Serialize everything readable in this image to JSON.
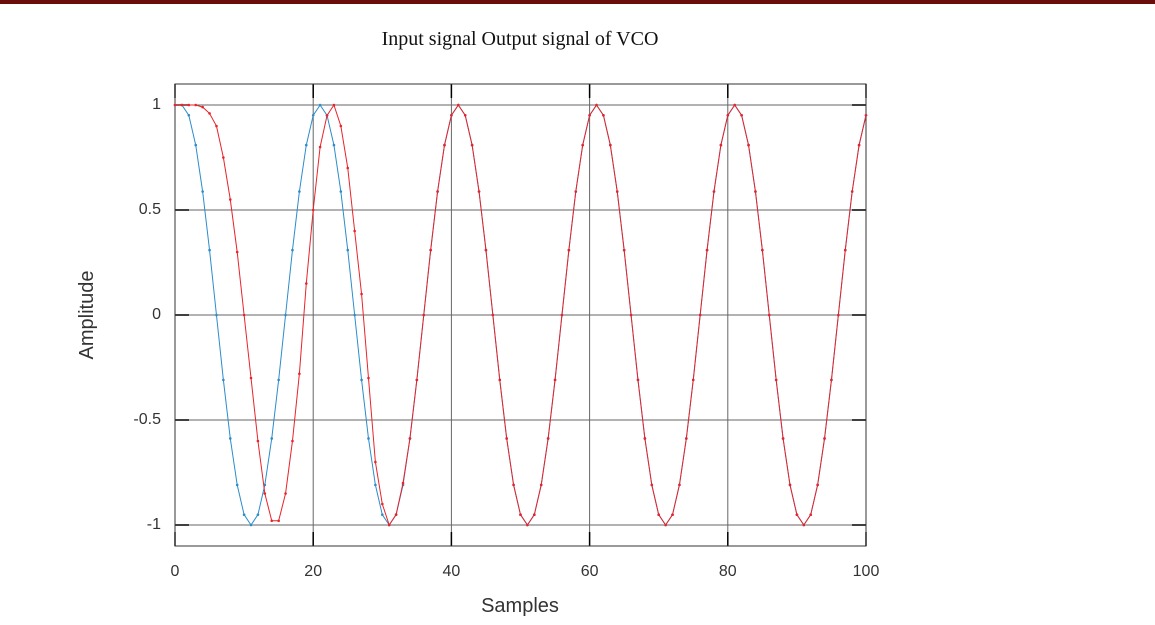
{
  "chart_data": {
    "type": "line",
    "title": "Input signal Output signal of VCO",
    "x_label": "Samples",
    "y_label": "Amplitude",
    "xlim": [
      0,
      100
    ],
    "ylim": [
      -1.1,
      1.1
    ],
    "xticks": [
      0,
      20,
      40,
      60,
      80,
      100
    ],
    "yticks": [
      1,
      0.5,
      0,
      -0.5,
      -1
    ],
    "grid": true,
    "series": [
      {
        "color": "#2b8ccc",
        "values": [
          1,
          1,
          0.951,
          0.809,
          0.588,
          0.309,
          0,
          -0.309,
          -0.588,
          -0.809,
          -0.951,
          -1,
          -0.951,
          -0.809,
          -0.588,
          -0.309,
          0,
          0.309,
          0.588,
          0.809,
          0.951,
          1,
          0.951,
          0.809,
          0.588,
          0.309,
          0,
          -0.309,
          -0.588,
          -0.809,
          -0.951,
          -1,
          -0.951,
          -0.809,
          -0.588,
          -0.309,
          0,
          0.309,
          0.588,
          0.809,
          0.951,
          1,
          0.951,
          0.809,
          0.588,
          0.309,
          0,
          -0.309,
          -0.588,
          -0.809,
          -0.951,
          -1,
          -0.951,
          -0.809,
          -0.588,
          -0.309,
          0,
          0.309,
          0.588,
          0.809,
          0.951,
          1,
          0.951,
          0.809,
          0.588,
          0.309,
          0,
          -0.309,
          -0.588,
          -0.809,
          -0.951,
          -1,
          -0.951,
          -0.809,
          -0.588,
          -0.309,
          0,
          0.309,
          0.588,
          0.809,
          0.951,
          1,
          0.951,
          0.809,
          0.588,
          0.309,
          0,
          -0.309,
          -0.588,
          -0.809,
          -0.951,
          -1,
          -0.951,
          -0.809,
          -0.588,
          -0.309,
          0,
          0.309,
          0.588,
          0.809,
          0.951
        ]
      },
      {
        "color": "#e8232a",
        "values": [
          1,
          1,
          1,
          1,
          0.99,
          0.96,
          0.9,
          0.75,
          0.55,
          0.3,
          0,
          -0.3,
          -0.6,
          -0.85,
          -0.98,
          -0.98,
          -0.85,
          -0.6,
          -0.28,
          0.15,
          0.5,
          0.8,
          0.95,
          1,
          0.9,
          0.7,
          0.4,
          0.1,
          -0.3,
          -0.7,
          -0.9,
          -1,
          -0.95,
          -0.8,
          -0.588,
          -0.309,
          0,
          0.309,
          0.588,
          0.809,
          0.951,
          1,
          0.951,
          0.809,
          0.588,
          0.309,
          0,
          -0.309,
          -0.588,
          -0.809,
          -0.951,
          -1,
          -0.951,
          -0.809,
          -0.588,
          -0.309,
          0,
          0.309,
          0.588,
          0.809,
          0.951,
          1,
          0.951,
          0.809,
          0.588,
          0.309,
          0,
          -0.309,
          -0.588,
          -0.809,
          -0.951,
          -1,
          -0.951,
          -0.809,
          -0.588,
          -0.309,
          0,
          0.309,
          0.588,
          0.809,
          0.951,
          1,
          0.951,
          0.809,
          0.588,
          0.309,
          0,
          -0.309,
          -0.588,
          -0.809,
          -0.951,
          -1,
          -0.951,
          -0.809,
          -0.588,
          -0.309,
          0,
          0.309,
          0.588,
          0.809,
          0.951
        ]
      }
    ]
  }
}
